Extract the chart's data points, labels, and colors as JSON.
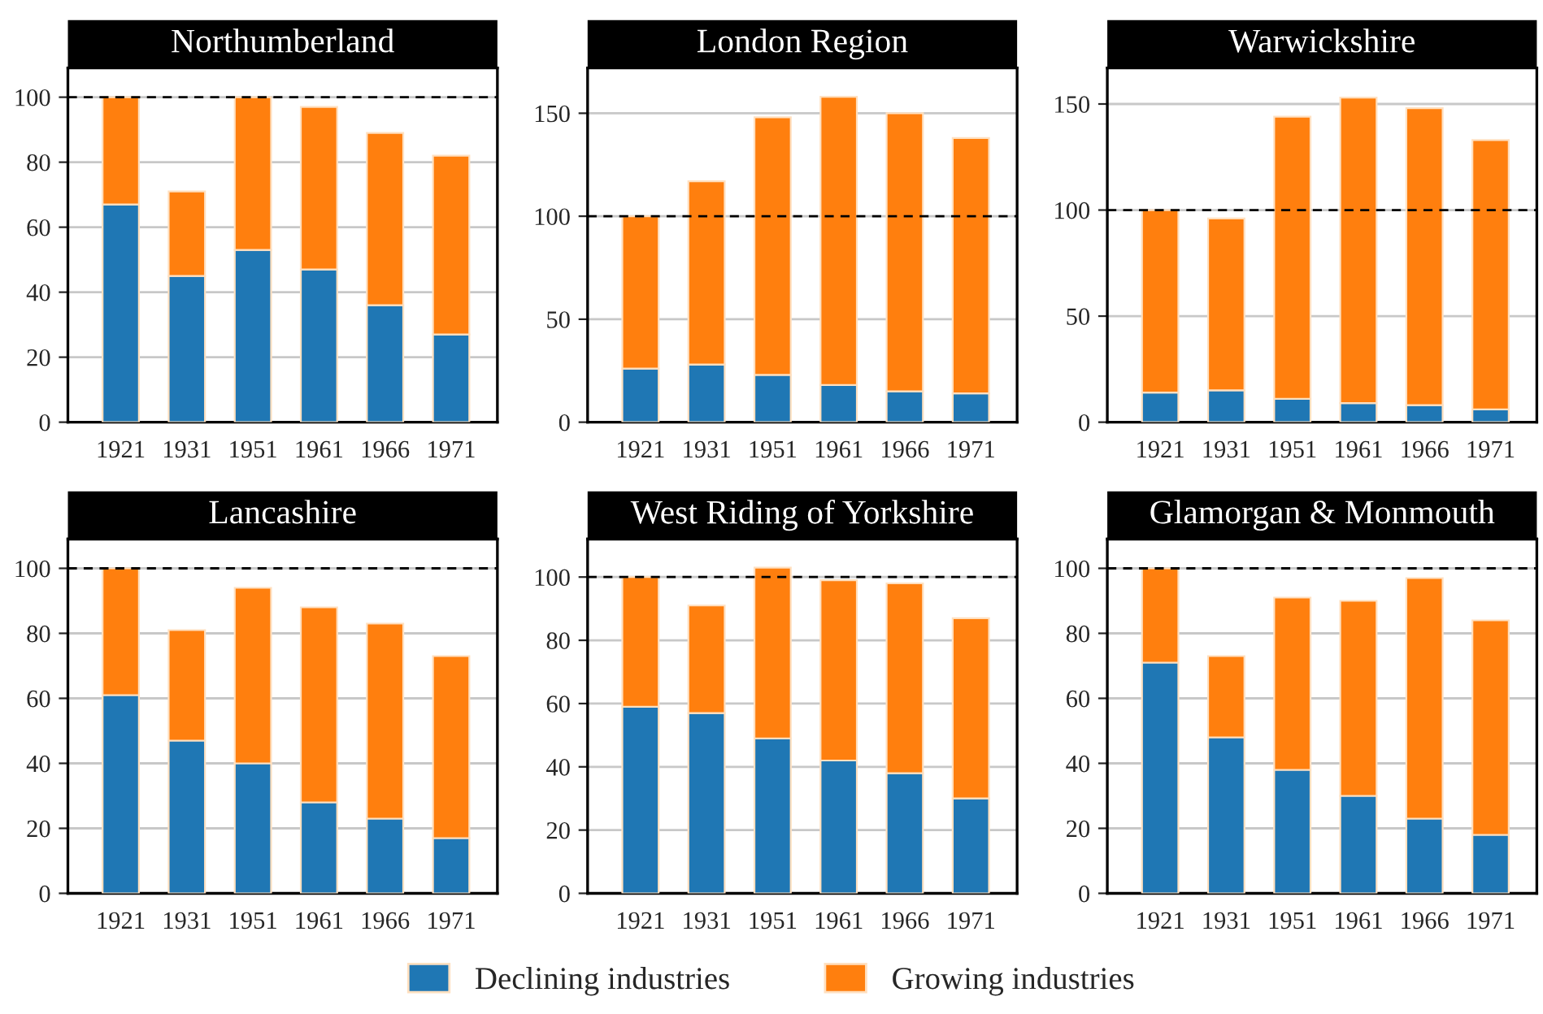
{
  "chart_data": [
    {
      "type": "bar",
      "title": "Northumberland",
      "categories": [
        "1921",
        "1931",
        "1951",
        "1961",
        "1966",
        "1971"
      ],
      "stacked": true,
      "ylim": [
        0,
        109
      ],
      "yticks": [
        0,
        20,
        40,
        60,
        80,
        100
      ],
      "grid": "y",
      "legend": "bottom",
      "series": [
        {
          "name": "Declining industries",
          "color": "#1f77b4",
          "values": [
            67,
            45,
            53,
            47,
            36,
            27
          ]
        },
        {
          "name": "Growing industries",
          "color": "#ff7f0e",
          "values": [
            33,
            26,
            47,
            50,
            53,
            55
          ]
        }
      ],
      "ref_lines": [
        {
          "axis": "y",
          "value": 100,
          "line_style": "dashed",
          "color": "#000000"
        }
      ]
    },
    {
      "type": "bar",
      "title": "London Region",
      "categories": [
        "1921",
        "1931",
        "1951",
        "1961",
        "1966",
        "1971"
      ],
      "stacked": true,
      "ylim": [
        0,
        172
      ],
      "yticks": [
        0,
        50,
        100,
        150
      ],
      "grid": "y",
      "series": [
        {
          "color": "#1f77b4",
          "values": [
            26,
            28,
            23,
            18,
            15,
            14
          ]
        },
        {
          "color": "#ff7f0e",
          "values": [
            74,
            89,
            125,
            140,
            135,
            124
          ]
        }
      ],
      "ref_lines": [
        {
          "axis": "y",
          "value": 100,
          "line_style": "dashed",
          "color": "#000000"
        }
      ]
    },
    {
      "type": "bar",
      "title": "Warwickshire",
      "categories": [
        "1921",
        "1931",
        "1951",
        "1961",
        "1966",
        "1971"
      ],
      "stacked": true,
      "ylim": [
        0,
        167
      ],
      "yticks": [
        0,
        50,
        100,
        150
      ],
      "grid": "y",
      "series": [
        {
          "color": "#1f77b4",
          "values": [
            14,
            15,
            11,
            9,
            8,
            6
          ]
        },
        {
          "color": "#ff7f0e",
          "values": [
            86,
            81,
            133,
            144,
            140,
            127
          ]
        }
      ],
      "ref_lines": [
        {
          "axis": "y",
          "value": 100,
          "line_style": "dashed",
          "color": "#000000"
        }
      ]
    },
    {
      "type": "bar",
      "title": "Lancashire",
      "categories": [
        "1921",
        "1931",
        "1951",
        "1961",
        "1966",
        "1971"
      ],
      "stacked": true,
      "ylim": [
        0,
        109
      ],
      "yticks": [
        0,
        20,
        40,
        60,
        80,
        100
      ],
      "grid": "y",
      "series": [
        {
          "color": "#1f77b4",
          "values": [
            61,
            47,
            40,
            28,
            23,
            17
          ]
        },
        {
          "color": "#ff7f0e",
          "values": [
            39,
            34,
            54,
            60,
            60,
            56
          ]
        }
      ],
      "ref_lines": [
        {
          "axis": "y",
          "value": 100,
          "line_style": "dashed",
          "color": "#000000"
        }
      ]
    },
    {
      "type": "bar",
      "title": "West Riding of Yorkshire",
      "categories": [
        "1921",
        "1931",
        "1951",
        "1961",
        "1966",
        "1971"
      ],
      "stacked": true,
      "ylim": [
        0,
        112
      ],
      "yticks": [
        0,
        20,
        40,
        60,
        80,
        100
      ],
      "grid": "y",
      "series": [
        {
          "color": "#1f77b4",
          "values": [
            59,
            57,
            49,
            42,
            38,
            30
          ]
        },
        {
          "color": "#ff7f0e",
          "values": [
            41,
            34,
            54,
            57,
            60,
            57
          ]
        }
      ],
      "ref_lines": [
        {
          "axis": "y",
          "value": 100,
          "line_style": "dashed",
          "color": "#000000"
        }
      ]
    },
    {
      "type": "bar",
      "title": "Glamorgan & Monmouth",
      "categories": [
        "1921",
        "1931",
        "1951",
        "1961",
        "1966",
        "1971"
      ],
      "stacked": true,
      "ylim": [
        0,
        109
      ],
      "yticks": [
        0,
        20,
        40,
        60,
        80,
        100
      ],
      "grid": "y",
      "series": [
        {
          "color": "#1f77b4",
          "values": [
            71,
            48,
            38,
            30,
            23,
            18
          ]
        },
        {
          "color": "#ff7f0e",
          "values": [
            29,
            25,
            53,
            60,
            74,
            66
          ]
        }
      ],
      "ref_lines": [
        {
          "axis": "y",
          "value": 100,
          "line_style": "dashed",
          "color": "#000000"
        }
      ]
    }
  ]
}
